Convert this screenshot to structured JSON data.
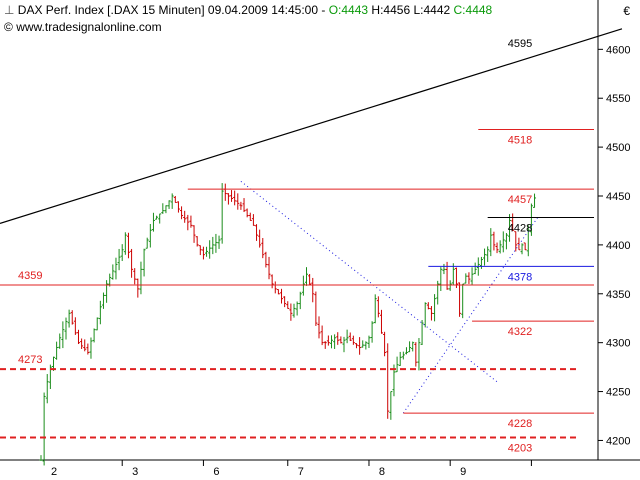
{
  "header": {
    "symbol_icon": "bar-chart-icon",
    "title": "DAX Perf. Index [.DAX  15 Minuten]",
    "datetime": "09.04.2009 14:45:00",
    "sep": "-",
    "open": "O:4443",
    "high": "H:4456",
    "low": "L:4442",
    "close": "C:4448",
    "url": "www.tradesignalonline.com",
    "currency": "€"
  },
  "colors": {
    "up": "#1a8c1a",
    "down": "#cc0000",
    "level": "#e02020",
    "blue": "#1a1ae0",
    "black": "#000000",
    "grid": "#bdbdbd"
  },
  "chart_data": {
    "type": "ohlc",
    "title": "DAX Perf. Index [.DAX 15 Minuten]",
    "y_axis": {
      "min": 4180,
      "max": 4630,
      "ticks": [
        4200,
        4250,
        4300,
        4350,
        4400,
        4450,
        4500,
        4550,
        4600
      ],
      "position": "right"
    },
    "x_axis": {
      "labels": [
        "2",
        "3",
        "6",
        "7",
        "8",
        "9"
      ],
      "unit": "trading day (April 2009)"
    },
    "path_points": [
      [
        0,
        4180
      ],
      [
        1,
        4245
      ],
      [
        3,
        4275
      ],
      [
        6,
        4305
      ],
      [
        9,
        4330
      ],
      [
        12,
        4300
      ],
      [
        15,
        4290
      ],
      [
        18,
        4325
      ],
      [
        21,
        4360
      ],
      [
        24,
        4380
      ],
      [
        26,
        4395
      ],
      [
        27,
        4410
      ],
      [
        29,
        4375
      ],
      [
        31,
        4355
      ],
      [
        33,
        4395
      ],
      [
        36,
        4425
      ],
      [
        39,
        4435
      ],
      [
        42,
        4450
      ],
      [
        45,
        4430
      ],
      [
        48,
        4420
      ],
      [
        50,
        4400
      ],
      [
        52,
        4390
      ],
      [
        55,
        4400
      ],
      [
        57,
        4405
      ],
      [
        58,
        4455
      ],
      [
        60,
        4450
      ],
      [
        62,
        4445
      ],
      [
        64,
        4440
      ],
      [
        66,
        4430
      ],
      [
        68,
        4420
      ],
      [
        70,
        4400
      ],
      [
        72,
        4380
      ],
      [
        74,
        4360
      ],
      [
        76,
        4350
      ],
      [
        78,
        4340
      ],
      [
        80,
        4330
      ],
      [
        82,
        4340
      ],
      [
        84,
        4360
      ],
      [
        85,
        4370
      ],
      [
        87,
        4350
      ],
      [
        88,
        4320
      ],
      [
        90,
        4300
      ],
      [
        92,
        4300
      ],
      [
        94,
        4305
      ],
      [
        96,
        4300
      ],
      [
        98,
        4305
      ],
      [
        100,
        4300
      ],
      [
        102,
        4295
      ],
      [
        104,
        4300
      ],
      [
        105,
        4305
      ],
      [
        106,
        4320
      ],
      [
        107,
        4345
      ],
      [
        108,
        4330
      ],
      [
        109,
        4310
      ],
      [
        110,
        4290
      ],
      [
        111,
        4230
      ],
      [
        112,
        4250
      ],
      [
        113,
        4270
      ],
      [
        115,
        4285
      ],
      [
        117,
        4290
      ],
      [
        119,
        4300
      ],
      [
        120,
        4280
      ],
      [
        121,
        4300
      ],
      [
        122,
        4320
      ],
      [
        123,
        4340
      ],
      [
        124,
        4335
      ],
      [
        125,
        4330
      ],
      [
        126,
        4345
      ],
      [
        127,
        4360
      ],
      [
        128,
        4375
      ],
      [
        129,
        4375
      ],
      [
        130,
        4355
      ],
      [
        131,
        4360
      ],
      [
        132,
        4375
      ],
      [
        133,
        4360
      ],
      [
        134,
        4330
      ],
      [
        135,
        4360
      ],
      [
        136,
        4368
      ],
      [
        137,
        4365
      ],
      [
        138,
        4370
      ],
      [
        143,
        4395
      ],
      [
        144,
        4410
      ],
      [
        145,
        4400
      ],
      [
        146,
        4395
      ],
      [
        147,
        4400
      ],
      [
        148,
        4405
      ],
      [
        149,
        4410
      ],
      [
        150,
        4425
      ],
      [
        151,
        4415
      ],
      [
        152,
        4400
      ],
      [
        153,
        4395
      ],
      [
        154,
        4400
      ],
      [
        155,
        4395
      ],
      [
        156,
        4415
      ],
      [
        157,
        4440
      ],
      [
        158,
        4448
      ]
    ],
    "x_total": 178,
    "day_starts": [
      0,
      26,
      52,
      79,
      105,
      131
    ],
    "levels": [
      {
        "value": 4595,
        "label": "4595",
        "x_start": null,
        "style": "trend",
        "color": "black"
      },
      {
        "value": 4518,
        "label": "4518",
        "x_start": 140,
        "style": "solid",
        "color": "red"
      },
      {
        "value": 4457,
        "label": "4457",
        "x_start": 47,
        "style": "solid",
        "color": "red"
      },
      {
        "value": 4428,
        "label": "4428",
        "x_start": 143,
        "style": "solid",
        "color": "black"
      },
      {
        "value": 4378,
        "label": "4378",
        "x_start": 124,
        "style": "solid",
        "color": "blue"
      },
      {
        "value": 4359,
        "label": "4359",
        "x_start": 0,
        "style": "solid",
        "color": "red",
        "label_left": true
      },
      {
        "value": 4322,
        "label": "4322",
        "x_start": 138,
        "style": "solid",
        "color": "red"
      },
      {
        "value": 4273,
        "label": "4273",
        "x_start": 0,
        "style": "dashed",
        "color": "red",
        "label_left": true
      },
      {
        "value": 4228,
        "label": "4228",
        "x_start": 116,
        "style": "solid",
        "color": "red"
      },
      {
        "value": 4203,
        "label": "4203",
        "x_start": 0,
        "style": "dashed",
        "color": "red"
      }
    ],
    "trendline": {
      "x1": 0,
      "y1": 4422,
      "x2": 186,
      "y2": 4621
    },
    "dotted_lines": [
      {
        "x1": 64,
        "y1": 4465,
        "x2": 146,
        "y2": 4260
      },
      {
        "x1": 116,
        "y1": 4228,
        "x2": 159,
        "y2": 4428
      }
    ]
  }
}
